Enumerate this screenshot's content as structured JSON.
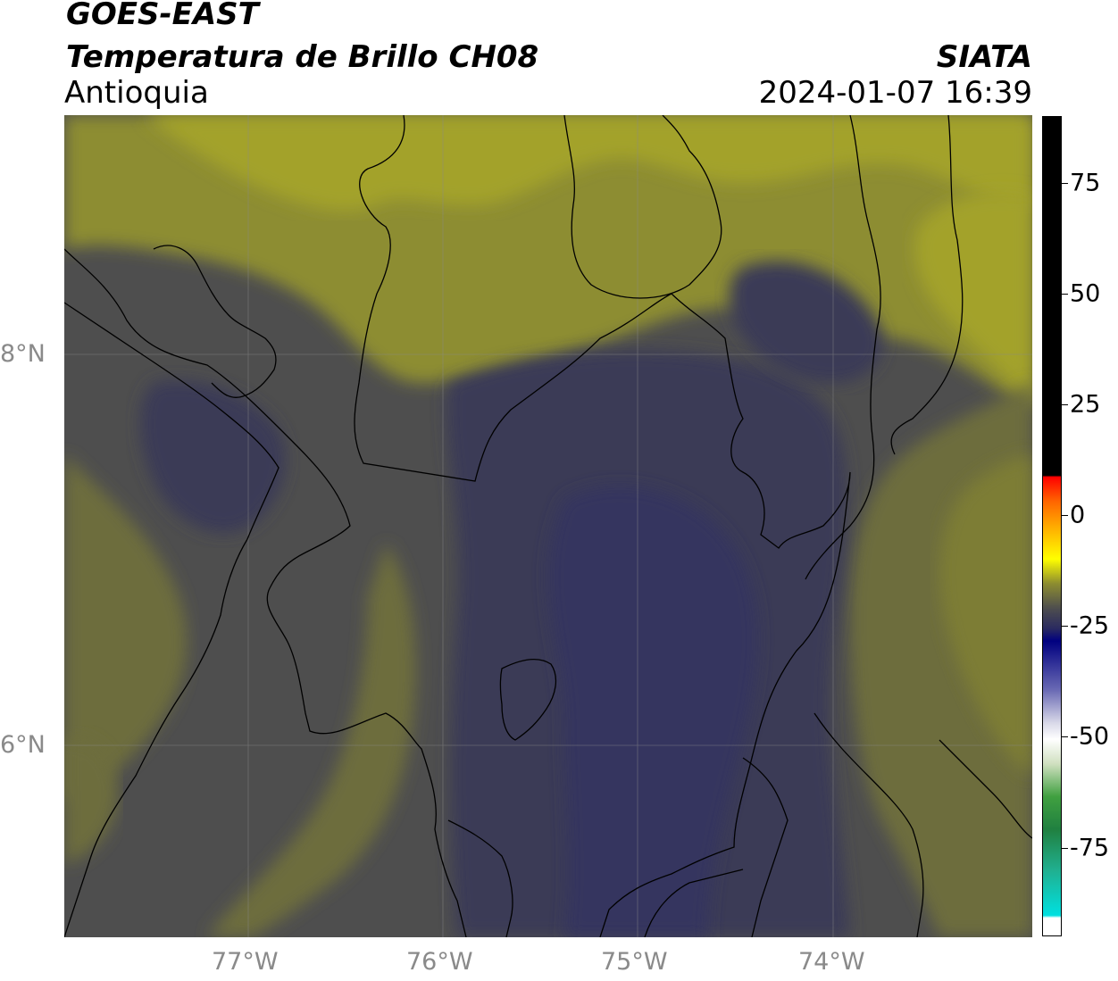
{
  "header": {
    "satellite": "GOES-EAST",
    "product": "Temperatura de Brillo CH08",
    "region": "Antioquia",
    "organization": "SIATA",
    "datetime": "2024-01-07 16:39"
  },
  "map": {
    "lon_labels": [
      "77°W",
      "76°W",
      "75°W",
      "74°W"
    ],
    "lat_labels": [
      "8°N",
      "6°N"
    ],
    "extent": {
      "lon_min": -77.93,
      "lon_max": -73.0,
      "lat_min": 4.95,
      "lat_max": 9.17
    },
    "gridlines": true,
    "colors": {
      "very_cold": "#35355e",
      "cold": "#3b3b57",
      "mid": "#4e4e4e",
      "warm": "#6d6d3c",
      "warmer": "#8d8d30",
      "warmest": "#a3a22b",
      "border": "#000000"
    }
  },
  "colorbar": {
    "tick_labels": [
      "75",
      "50",
      "25",
      "0",
      "-25",
      "-50",
      "-75"
    ],
    "tick_values": [
      75,
      50,
      25,
      0,
      -25,
      -50,
      -75
    ],
    "vmin": -95,
    "vmax": 90
  }
}
